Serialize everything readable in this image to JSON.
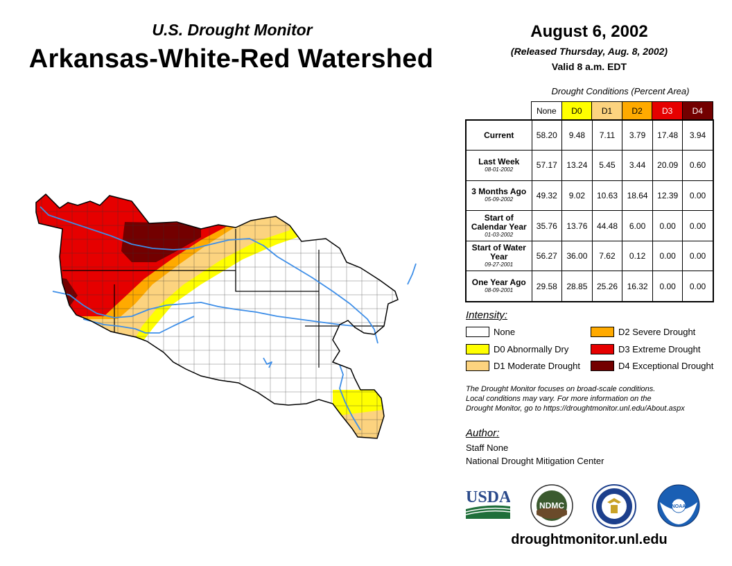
{
  "header": {
    "subtitle": "U.S. Drought Monitor",
    "title": "Arkansas-White-Red Watershed",
    "date": "August 6, 2002",
    "released": "(Released Thursday, Aug. 8, 2002)",
    "valid": "Valid 8 a.m. EDT"
  },
  "table": {
    "caption": "Drought Conditions (Percent Area)",
    "columns": [
      {
        "label": "None",
        "color": "#ffffff"
      },
      {
        "label": "D0",
        "color": "#ffff00"
      },
      {
        "label": "D1",
        "color": "#fcd37f"
      },
      {
        "label": "D2",
        "color": "#ffaa00"
      },
      {
        "label": "D3",
        "color": "#e60000"
      },
      {
        "label": "D4",
        "color": "#730000"
      }
    ],
    "rows": [
      {
        "label": "Current",
        "date": "",
        "values": [
          "58.20",
          "9.48",
          "7.11",
          "3.79",
          "17.48",
          "3.94"
        ]
      },
      {
        "label": "Last Week",
        "date": "08-01-2002",
        "values": [
          "57.17",
          "13.24",
          "5.45",
          "3.44",
          "20.09",
          "0.60"
        ]
      },
      {
        "label": "3 Months Ago",
        "date": "05-09-2002",
        "values": [
          "49.32",
          "9.02",
          "10.63",
          "18.64",
          "12.39",
          "0.00"
        ]
      },
      {
        "label": "Start of Calendar Year",
        "date": "01-03-2002",
        "values": [
          "35.76",
          "13.76",
          "44.48",
          "6.00",
          "0.00",
          "0.00"
        ]
      },
      {
        "label": "Start of Water Year",
        "date": "09-27-2001",
        "values": [
          "56.27",
          "36.00",
          "7.62",
          "0.12",
          "0.00",
          "0.00"
        ]
      },
      {
        "label": "One Year Ago",
        "date": "08-09-2001",
        "values": [
          "29.58",
          "28.85",
          "25.26",
          "16.32",
          "0.00",
          "0.00"
        ]
      }
    ]
  },
  "legend": {
    "title": "Intensity:",
    "items": [
      {
        "label": "None",
        "color": "#ffffff"
      },
      {
        "label": "D0 Abnormally Dry",
        "color": "#ffff00"
      },
      {
        "label": "D1 Moderate Drought",
        "color": "#fcd37f"
      },
      {
        "label": "D2 Severe Drought",
        "color": "#ffaa00"
      },
      {
        "label": "D3 Extreme Drought",
        "color": "#e60000"
      },
      {
        "label": "D4 Exceptional Drought",
        "color": "#730000"
      }
    ]
  },
  "note": {
    "line1": "The Drought Monitor focuses on broad-scale conditions.",
    "line2": "Local conditions may vary. For more information on the",
    "line3": "Drought Monitor, go to https://droughtmonitor.unl.edu/About.aspx"
  },
  "author": {
    "title": "Author:",
    "name": "Staff None",
    "org": "National Drought Mitigation Center"
  },
  "logos": {
    "usda": "USDA",
    "ndmc": "NDMC",
    "noaa": "NOAA"
  },
  "footer": {
    "site": "droughtmonitor.unl.edu"
  },
  "colors": {
    "none": "#ffffff",
    "d0": "#ffff00",
    "d1": "#fcd37f",
    "d2": "#ffaa00",
    "d3": "#e60000",
    "d4": "#730000",
    "river": "#3d8ee8"
  }
}
